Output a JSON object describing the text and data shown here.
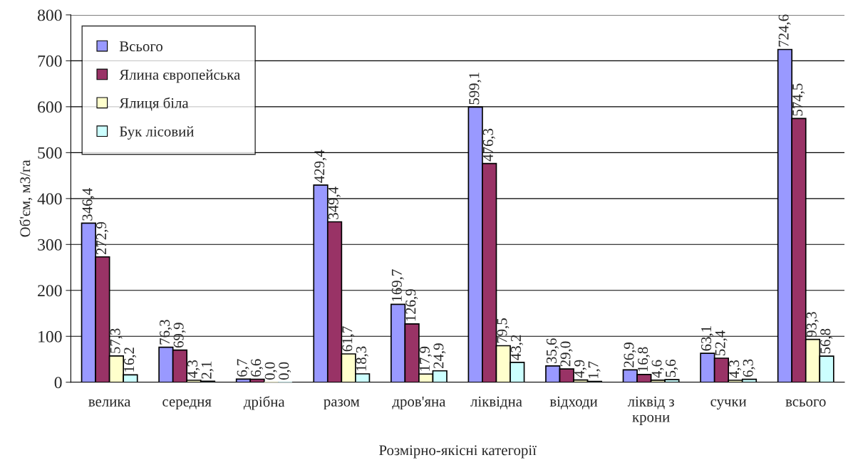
{
  "chart_data": {
    "type": "bar",
    "xlabel": "Розмірно-якісні категорії",
    "ylabel": "Об'єм, м3/га",
    "categories": [
      "велика",
      "середня",
      "дрібна",
      "разом",
      "дров'яна",
      "ліквідна",
      "відходи",
      "ліквід з\nкрони",
      "сучки",
      "всього"
    ],
    "series": [
      {
        "name": "Всього",
        "color": "#9999ff",
        "values": [
          346.4,
          76.3,
          6.7,
          429.4,
          169.7,
          599.1,
          35.6,
          26.9,
          63.1,
          724.6
        ],
        "value_labels": [
          "346,4",
          "76,3",
          "6,7",
          "429,4",
          "169,7",
          "599,1",
          "35,6",
          "26,9",
          "63,1",
          "724,6"
        ]
      },
      {
        "name": "Ялина європейська",
        "color": "#993366",
        "values": [
          272.9,
          69.9,
          6.6,
          349.4,
          126.9,
          476.3,
          29.0,
          16.8,
          52.4,
          574.5
        ],
        "value_labels": [
          "272,9",
          "69,9",
          "6,6",
          "349,4",
          "126,9",
          "476,3",
          "29,0",
          "16,8",
          "52,4",
          "574,5"
        ]
      },
      {
        "name": "Ялиця біла",
        "color": "#ffffcc",
        "values": [
          57.3,
          4.3,
          0.0,
          61.7,
          17.9,
          79.5,
          4.9,
          4.6,
          4.3,
          93.3
        ],
        "value_labels": [
          "57,3",
          "4,3",
          "0,0",
          "61,7",
          "17,9",
          "79,5",
          "4,9",
          "4,6",
          "4,3",
          "93,3"
        ]
      },
      {
        "name": "Бук лісовий",
        "color": "#ccffff",
        "values": [
          16.2,
          2.1,
          0.0,
          18.3,
          24.9,
          43.2,
          1.7,
          5.6,
          6.3,
          56.8
        ],
        "value_labels": [
          "16,2",
          "2,1",
          "0,0",
          "18,3",
          "24,9",
          "43,2",
          "1,7",
          "5,6",
          "6,3",
          "56,8"
        ]
      }
    ],
    "ylim": [
      0,
      800
    ],
    "yticks": [
      0,
      100,
      200,
      300,
      400,
      500,
      600,
      700,
      800
    ],
    "grid": "y",
    "legend": "top left"
  }
}
